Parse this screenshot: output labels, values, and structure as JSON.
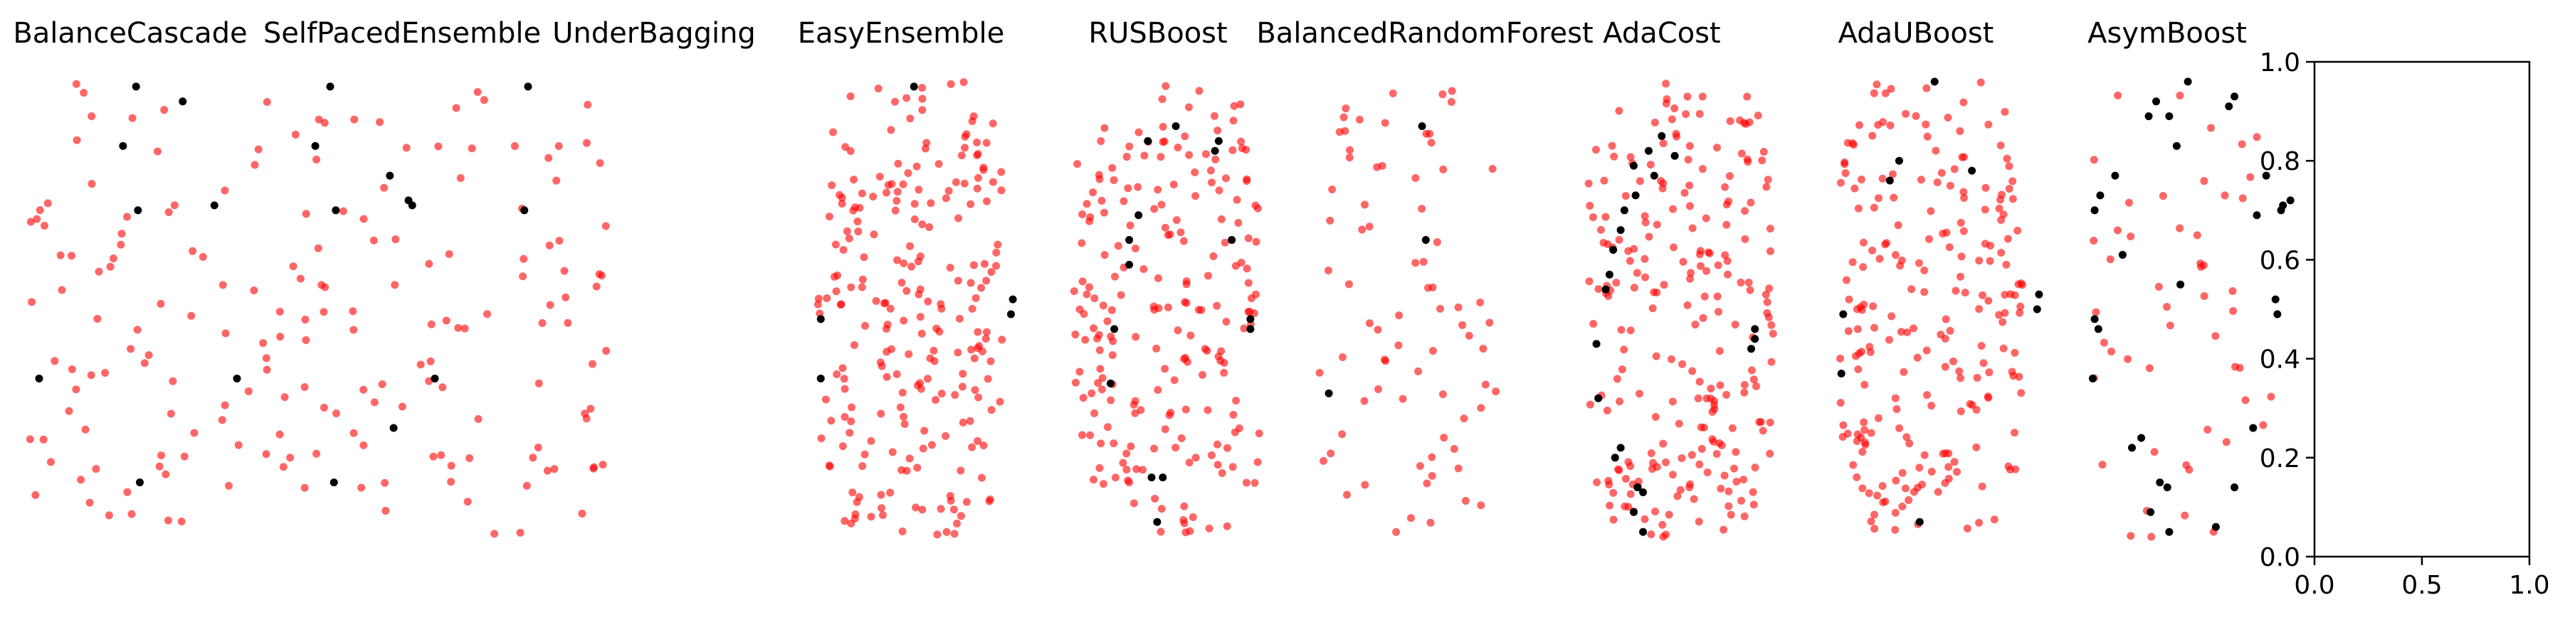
{
  "chart_data": [
    {
      "type": "scatter",
      "title": "BalanceCascade",
      "n_red": 60,
      "seed": 11,
      "black": [
        [
          0.6,
          0.95
        ],
        [
          0.85,
          0.92
        ],
        [
          0.53,
          0.83
        ],
        [
          0.61,
          0.7
        ],
        [
          1.02,
          0.71
        ],
        [
          0.08,
          0.36
        ],
        [
          0.62,
          0.15
        ]
      ]
    },
    {
      "type": "scatter",
      "title": "SelfPacedEnsemble",
      "n_red": 60,
      "seed": 12,
      "black": [
        [
          0.58,
          0.95
        ],
        [
          0.5,
          0.83
        ],
        [
          0.61,
          0.7
        ],
        [
          0.9,
          0.77
        ],
        [
          1.0,
          0.72
        ],
        [
          1.02,
          0.71
        ],
        [
          0.08,
          0.36
        ],
        [
          0.92,
          0.26
        ],
        [
          0.6,
          0.15
        ]
      ]
    },
    {
      "type": "scatter",
      "title": "UnderBagging",
      "n_red": 62,
      "seed": 13,
      "black": [
        [
          0.58,
          0.95
        ],
        [
          0.56,
          0.7
        ],
        [
          0.08,
          0.36
        ]
      ]
    },
    {
      "type": "scatter",
      "title": "EasyEnsemble",
      "n_red": 230,
      "seed": 14,
      "black": [
        [
          0.52,
          0.95
        ],
        [
          0.02,
          0.48
        ],
        [
          0.02,
          0.36
        ],
        [
          1.05,
          0.52
        ],
        [
          1.04,
          0.49
        ]
      ]
    },
    {
      "type": "scatter",
      "title": "RUSBoost",
      "n_red": 210,
      "seed": 15,
      "black": [
        [
          0.55,
          0.87
        ],
        [
          0.4,
          0.84
        ],
        [
          0.78,
          0.84
        ],
        [
          0.76,
          0.82
        ],
        [
          0.35,
          0.69
        ],
        [
          0.3,
          0.64
        ],
        [
          0.3,
          0.59
        ],
        [
          0.85,
          0.64
        ],
        [
          0.22,
          0.46
        ],
        [
          0.2,
          0.35
        ],
        [
          0.95,
          0.48
        ],
        [
          0.95,
          0.46
        ],
        [
          0.42,
          0.16
        ],
        [
          0.48,
          0.16
        ],
        [
          0.45,
          0.07
        ]
      ]
    },
    {
      "type": "scatter",
      "title": "BalancedRandomForest",
      "n_red": 75,
      "seed": 16,
      "black": [
        [
          0.55,
          0.87
        ],
        [
          0.57,
          0.64
        ],
        [
          0.05,
          0.33
        ]
      ]
    },
    {
      "type": "scatter",
      "title": "AdaCost",
      "n_red": 230,
      "seed": 17,
      "black": [
        [
          0.4,
          0.85
        ],
        [
          0.33,
          0.82
        ],
        [
          0.47,
          0.81
        ],
        [
          0.25,
          0.79
        ],
        [
          0.36,
          0.77
        ],
        [
          0.26,
          0.73
        ],
        [
          0.2,
          0.7
        ],
        [
          0.18,
          0.66
        ],
        [
          0.14,
          0.62
        ],
        [
          0.12,
          0.57
        ],
        [
          0.1,
          0.54
        ],
        [
          0.9,
          0.46
        ],
        [
          0.05,
          0.43
        ],
        [
          0.9,
          0.44
        ],
        [
          0.88,
          0.42
        ],
        [
          0.06,
          0.32
        ],
        [
          0.18,
          0.22
        ],
        [
          0.15,
          0.2
        ],
        [
          0.27,
          0.14
        ],
        [
          0.3,
          0.13
        ],
        [
          0.25,
          0.09
        ],
        [
          0.3,
          0.05
        ]
      ]
    },
    {
      "type": "scatter",
      "title": "AdaUBoost",
      "n_red": 220,
      "seed": 18,
      "black": [
        [
          0.52,
          0.96
        ],
        [
          0.33,
          0.8
        ],
        [
          0.28,
          0.76
        ],
        [
          0.72,
          0.78
        ],
        [
          0.03,
          0.49
        ],
        [
          1.08,
          0.53
        ],
        [
          1.07,
          0.5
        ],
        [
          0.02,
          0.37
        ],
        [
          0.44,
          0.07
        ]
      ]
    },
    {
      "type": "scatter",
      "title": "AsymBoost",
      "n_red": 50,
      "seed": 19,
      "black": [
        [
          0.55,
          0.96
        ],
        [
          0.38,
          0.92
        ],
        [
          0.8,
          0.93
        ],
        [
          0.77,
          0.91
        ],
        [
          0.45,
          0.89
        ],
        [
          0.34,
          0.89
        ],
        [
          0.49,
          0.83
        ],
        [
          0.16,
          0.77
        ],
        [
          0.08,
          0.73
        ],
        [
          0.05,
          0.7
        ],
        [
          1.1,
          0.72
        ],
        [
          0.97,
          0.77
        ],
        [
          0.92,
          0.69
        ],
        [
          1.05,
          0.7
        ],
        [
          1.06,
          0.71
        ],
        [
          0.2,
          0.61
        ],
        [
          0.51,
          0.55
        ],
        [
          1.02,
          0.52
        ],
        [
          1.03,
          0.49
        ],
        [
          0.05,
          0.48
        ],
        [
          0.07,
          0.46
        ],
        [
          0.04,
          0.36
        ],
        [
          0.3,
          0.24
        ],
        [
          0.25,
          0.22
        ],
        [
          0.4,
          0.15
        ],
        [
          0.35,
          0.09
        ],
        [
          0.45,
          0.05
        ],
        [
          0.9,
          0.26
        ],
        [
          0.8,
          0.14
        ],
        [
          0.7,
          0.06
        ],
        [
          0.44,
          0.14
        ]
      ]
    },
    {
      "type": "axes",
      "title": "",
      "xlim": [
        0,
        1
      ],
      "ylim": [
        0,
        1
      ],
      "xticks": [
        "0.0",
        "0.5",
        "1.0"
      ],
      "yticks": [
        "0.0",
        "0.2",
        "0.4",
        "0.6",
        "0.8",
        "1.0"
      ]
    }
  ],
  "colors": {
    "minority": "#000000",
    "majority": "#ff0000"
  }
}
